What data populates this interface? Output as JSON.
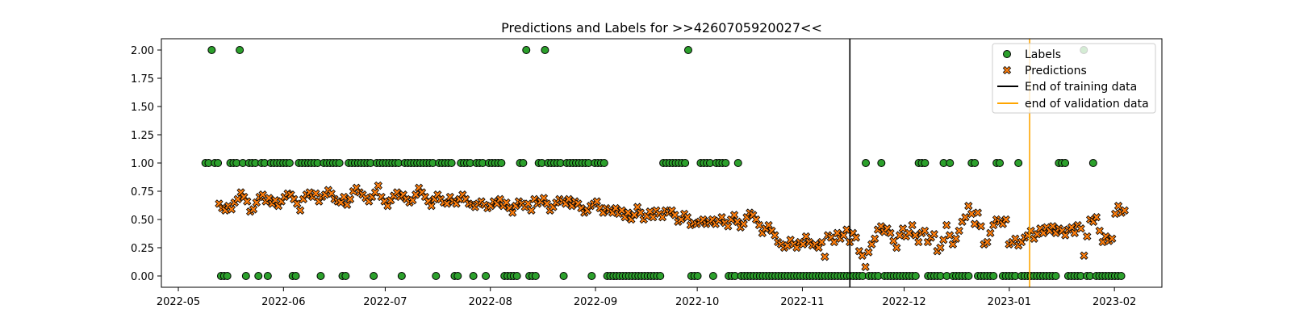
{
  "chart_data": {
    "type": "scatter",
    "title": "Predictions and Labels for >>4260705920027<<",
    "xlabel": "",
    "ylabel": "",
    "x_axis_type": "date",
    "xlim": [
      "2022-04-26",
      "2023-02-15"
    ],
    "ylim": [
      -0.1,
      2.1
    ],
    "yticks": [
      0.0,
      0.25,
      0.5,
      0.75,
      1.0,
      1.25,
      1.5,
      1.75,
      2.0
    ],
    "ytick_labels": [
      "0.00",
      "0.25",
      "0.50",
      "0.75",
      "1.00",
      "1.25",
      "1.50",
      "1.75",
      "2.00"
    ],
    "xticks": [
      "2022-05-01",
      "2022-06-01",
      "2022-07-01",
      "2022-08-01",
      "2022-09-01",
      "2022-10-01",
      "2022-11-01",
      "2022-12-01",
      "2023-01-01",
      "2023-02-01"
    ],
    "xtick_labels": [
      "2022-05",
      "2022-06",
      "2022-07",
      "2022-08",
      "2022-09",
      "2022-10",
      "2022-11",
      "2022-12",
      "2023-01",
      "2023-02"
    ],
    "grid": false,
    "legend_position": "top-right",
    "colors": {
      "labels": "#2ca02c",
      "predictions": "#ff7f0e",
      "training_line": "#000000",
      "validation_line": "#ffa500"
    },
    "series": [
      {
        "name": "Labels",
        "marker": "circle",
        "start_date": "2022-05-09",
        "end_date": "2023-02-03",
        "values": [
          1,
          1,
          2,
          1,
          1,
          0,
          0,
          0,
          1,
          1,
          1,
          2,
          1,
          0,
          1,
          1,
          1,
          0,
          1,
          1,
          0,
          1,
          1,
          1,
          1,
          1,
          1,
          1,
          0,
          0,
          1,
          1,
          1,
          1,
          1,
          1,
          1,
          0,
          1,
          1,
          1,
          1,
          1,
          1,
          0,
          0,
          1,
          1,
          1,
          1,
          1,
          1,
          1,
          1,
          0,
          1,
          1,
          1,
          1,
          1,
          1,
          1,
          1,
          0,
          1,
          1,
          1,
          1,
          1,
          1,
          1,
          1,
          1,
          1,
          0,
          1,
          1,
          1,
          1,
          1,
          0,
          0,
          1,
          1,
          1,
          1,
          0,
          1,
          1,
          1,
          0,
          1,
          1,
          1,
          1,
          1,
          0,
          0,
          0,
          0,
          0,
          1,
          1,
          2,
          0,
          0,
          0,
          1,
          1,
          2,
          1,
          1,
          1,
          1,
          1,
          0,
          1,
          1,
          1,
          1,
          1,
          1,
          1,
          1,
          0,
          1,
          1,
          1,
          1,
          0,
          0,
          0,
          0,
          0,
          0,
          0,
          0,
          0,
          0,
          0,
          0,
          0,
          0,
          0,
          0,
          0,
          0,
          1,
          1,
          1,
          1,
          1,
          1,
          1,
          1,
          2,
          0,
          0,
          0,
          1,
          1,
          1,
          1,
          0,
          1,
          1,
          1,
          1,
          0,
          0,
          0,
          1,
          0,
          0,
          0,
          0,
          0,
          0,
          0,
          0,
          0,
          0,
          0,
          0,
          0,
          0,
          0,
          0,
          0,
          0,
          0,
          0,
          0,
          0,
          0,
          0,
          0,
          0,
          0,
          0,
          0,
          0,
          0,
          0,
          0,
          0,
          0,
          0,
          0,
          0,
          0,
          0,
          1,
          0,
          0,
          0,
          0,
          1,
          0,
          0,
          0,
          0,
          0,
          0,
          0,
          0,
          0,
          0,
          0,
          1,
          1,
          1,
          0,
          0,
          0,
          0,
          0,
          1,
          0,
          1,
          0,
          0,
          0,
          0,
          0,
          0,
          1,
          1,
          0,
          0,
          0,
          0,
          0,
          0,
          1,
          1,
          0,
          0,
          0,
          0,
          0,
          1,
          0,
          0,
          0,
          0,
          0,
          0,
          0,
          0,
          0,
          0,
          0,
          0,
          1,
          1,
          1,
          0,
          0,
          0,
          0,
          0,
          2,
          0,
          0,
          1,
          0,
          0,
          0,
          0,
          0,
          0,
          0,
          0,
          0
        ]
      },
      {
        "name": "Predictions",
        "marker": "x-filled",
        "start_date": "2022-05-13",
        "end_date": "2023-02-04",
        "values": [
          0.64,
          0.6,
          0.58,
          0.62,
          0.59,
          0.65,
          0.68,
          0.74,
          0.7,
          0.66,
          0.57,
          0.59,
          0.65,
          0.7,
          0.72,
          0.66,
          0.69,
          0.64,
          0.67,
          0.62,
          0.66,
          0.7,
          0.73,
          0.72,
          0.68,
          0.64,
          0.58,
          0.68,
          0.72,
          0.74,
          0.7,
          0.73,
          0.66,
          0.7,
          0.72,
          0.76,
          0.73,
          0.68,
          0.66,
          0.65,
          0.7,
          0.63,
          0.68,
          0.75,
          0.78,
          0.74,
          0.72,
          0.69,
          0.66,
          0.7,
          0.74,
          0.8,
          0.7,
          0.66,
          0.62,
          0.67,
          0.71,
          0.74,
          0.7,
          0.72,
          0.68,
          0.65,
          0.67,
          0.72,
          0.78,
          0.74,
          0.7,
          0.66,
          0.62,
          0.68,
          0.72,
          0.68,
          0.65,
          0.64,
          0.7,
          0.66,
          0.64,
          0.68,
          0.72,
          0.68,
          0.64,
          0.63,
          0.61,
          0.64,
          0.66,
          0.63,
          0.6,
          0.62,
          0.66,
          0.64,
          0.68,
          0.62,
          0.65,
          0.6,
          0.56,
          0.62,
          0.66,
          0.64,
          0.61,
          0.64,
          0.58,
          0.68,
          0.64,
          0.66,
          0.69,
          0.64,
          0.58,
          0.61,
          0.65,
          0.68,
          0.66,
          0.64,
          0.68,
          0.62,
          0.66,
          0.64,
          0.6,
          0.56,
          0.58,
          0.62,
          0.64,
          0.66,
          0.6,
          0.56,
          0.6,
          0.58,
          0.56,
          0.6,
          0.55,
          0.58,
          0.52,
          0.56,
          0.5,
          0.54,
          0.61,
          0.56,
          0.5,
          0.53,
          0.57,
          0.52,
          0.58,
          0.55,
          0.52,
          0.58,
          0.56,
          0.58,
          0.54,
          0.48,
          0.5,
          0.55,
          0.52,
          0.45,
          0.47,
          0.46,
          0.48,
          0.5,
          0.46,
          0.48,
          0.5,
          0.46,
          0.49,
          0.52,
          0.47,
          0.44,
          0.5,
          0.54,
          0.48,
          0.43,
          0.46,
          0.52,
          0.56,
          0.54,
          0.5,
          0.45,
          0.38,
          0.42,
          0.45,
          0.4,
          0.36,
          0.3,
          0.28,
          0.25,
          0.27,
          0.32,
          0.28,
          0.25,
          0.3,
          0.28,
          0.35,
          0.3,
          0.27,
          0.28,
          0.25,
          0.3,
          0.17,
          0.36,
          0.34,
          0.3,
          0.38,
          0.33,
          0.36,
          0.41,
          0.3,
          0.38,
          0.34,
          0.22,
          0.18,
          0.08,
          0.21,
          0.28,
          0.33,
          0.41,
          0.44,
          0.39,
          0.42,
          0.38,
          0.31,
          0.25,
          0.36,
          0.42,
          0.35,
          0.38,
          0.45,
          0.36,
          0.3,
          0.38,
          0.4,
          0.3,
          0.34,
          0.37,
          0.22,
          0.25,
          0.32,
          0.45,
          0.36,
          0.28,
          0.33,
          0.4,
          0.48,
          0.52,
          0.62,
          0.55,
          0.46,
          0.56,
          0.44,
          0.28,
          0.3,
          0.38,
          0.45,
          0.5,
          0.48,
          0.46,
          0.5,
          0.28,
          0.3,
          0.33,
          0.27,
          0.3,
          0.34,
          0.36,
          0.4,
          0.33,
          0.37,
          0.42,
          0.38,
          0.43,
          0.4,
          0.44,
          0.38,
          0.42,
          0.4,
          0.36,
          0.41,
          0.43,
          0.38,
          0.45,
          0.42,
          0.18,
          0.35,
          0.5,
          0.48,
          0.52,
          0.4,
          0.3,
          0.35,
          0.31,
          0.33,
          0.55,
          0.62,
          0.56,
          0.58
        ]
      }
    ],
    "vlines": [
      {
        "name": "End of training data",
        "x": "2022-11-15"
      },
      {
        "name": "end of validation data",
        "x": "2023-01-07"
      }
    ]
  }
}
